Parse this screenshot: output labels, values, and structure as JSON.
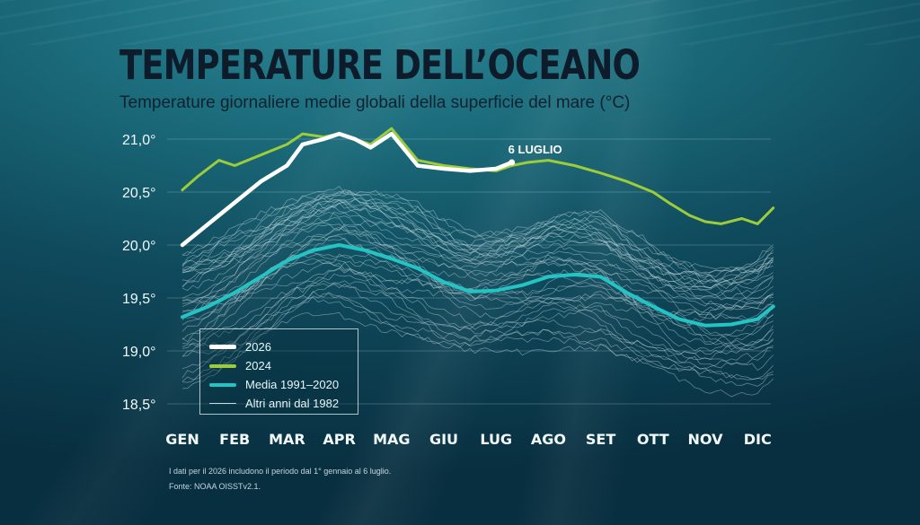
{
  "title": "TEMPERATURE DELL’OCEANO",
  "subtitle": "Temperature giornaliere medie globali della superficie del mare (°C)",
  "footnotes": {
    "line1": "I dati per il 2026 includono il periodo dal 1° gennaio al 6 luglio.",
    "line2": "Fonte: NOAA OISSTv2.1."
  },
  "colors": {
    "y2026": "#ffffff",
    "y2024": "#9ccc3a",
    "average": "#22c4c4",
    "other_years": "#c9dde2",
    "axis_text": "#f2fafb"
  },
  "legend": {
    "items": [
      {
        "label": "2026",
        "color": "#ffffff",
        "weight": "thick"
      },
      {
        "label": "2024",
        "color": "#9ccc3a",
        "weight": "medium"
      },
      {
        "label": "Media 1991–2020",
        "color": "#22c4c4",
        "weight": "medium"
      },
      {
        "label": "Altri anni dal 1982",
        "color": "#c9dde2",
        "weight": "thin"
      }
    ]
  },
  "chart_data": {
    "type": "line",
    "title": "TEMPERATURE DELL’OCEANO",
    "subtitle": "Temperature giornaliere medie globali della superficie del mare (°C)",
    "xlabel": "",
    "ylabel": "",
    "x_ticks": [
      "GEN",
      "FEB",
      "MAR",
      "APR",
      "MAG",
      "GIU",
      "LUG",
      "AGO",
      "SET",
      "OTT",
      "NOV",
      "DIC"
    ],
    "y_ticks": [
      "21,0°",
      "20,5°",
      "20,0°",
      "19,5°",
      "19,0°",
      "18,5°"
    ],
    "y_tick_values": [
      21.0,
      20.5,
      20.0,
      19.5,
      19.0,
      18.5
    ],
    "ylim": [
      18.5,
      21.0
    ],
    "grid": true,
    "legend_position": "bottom-left",
    "annotation": {
      "text": "6 LUGLIO",
      "month": 6.3,
      "value": 20.78
    },
    "series": [
      {
        "name": "2026",
        "color": "#ffffff",
        "months": [
          0,
          0.5,
          1,
          1.5,
          2,
          2.3,
          2.7,
          3,
          3.3,
          3.6,
          4,
          4.5,
          5,
          5.5,
          6,
          6.3
        ],
        "values": [
          20.0,
          20.2,
          20.4,
          20.6,
          20.75,
          20.95,
          21.0,
          21.05,
          21.0,
          20.92,
          21.05,
          20.75,
          20.72,
          20.7,
          20.72,
          20.78
        ]
      },
      {
        "name": "2024",
        "color": "#9ccc3a",
        "months": [
          0,
          0.3,
          0.7,
          1,
          1.5,
          2,
          2.3,
          2.7,
          3,
          3.3,
          3.6,
          4,
          4.2,
          4.5,
          5,
          5.5,
          6,
          6.3,
          6.6,
          7,
          7.5,
          8,
          8.5,
          9,
          9.3,
          9.7,
          10,
          10.3,
          10.7,
          11,
          11.3
        ],
        "values": [
          20.52,
          20.65,
          20.8,
          20.75,
          20.85,
          20.95,
          21.05,
          21.02,
          21.05,
          21.0,
          20.95,
          21.1,
          20.98,
          20.8,
          20.75,
          20.72,
          20.7,
          20.75,
          20.78,
          20.8,
          20.75,
          20.68,
          20.6,
          20.5,
          20.4,
          20.28,
          20.22,
          20.2,
          20.25,
          20.2,
          20.35
        ]
      },
      {
        "name": "Media 1991–2020",
        "color": "#22c4c4",
        "months": [
          0,
          0.5,
          1,
          1.5,
          2,
          2.5,
          3,
          3.5,
          4,
          4.5,
          5,
          5.5,
          6,
          6.5,
          7,
          7.5,
          8,
          8.5,
          9,
          9.5,
          10,
          10.5,
          11,
          11.3
        ],
        "values": [
          19.32,
          19.42,
          19.55,
          19.7,
          19.85,
          19.95,
          20.0,
          19.95,
          19.87,
          19.78,
          19.65,
          19.56,
          19.57,
          19.62,
          19.7,
          19.72,
          19.7,
          19.55,
          19.42,
          19.3,
          19.24,
          19.25,
          19.3,
          19.42
        ]
      }
    ]
  }
}
